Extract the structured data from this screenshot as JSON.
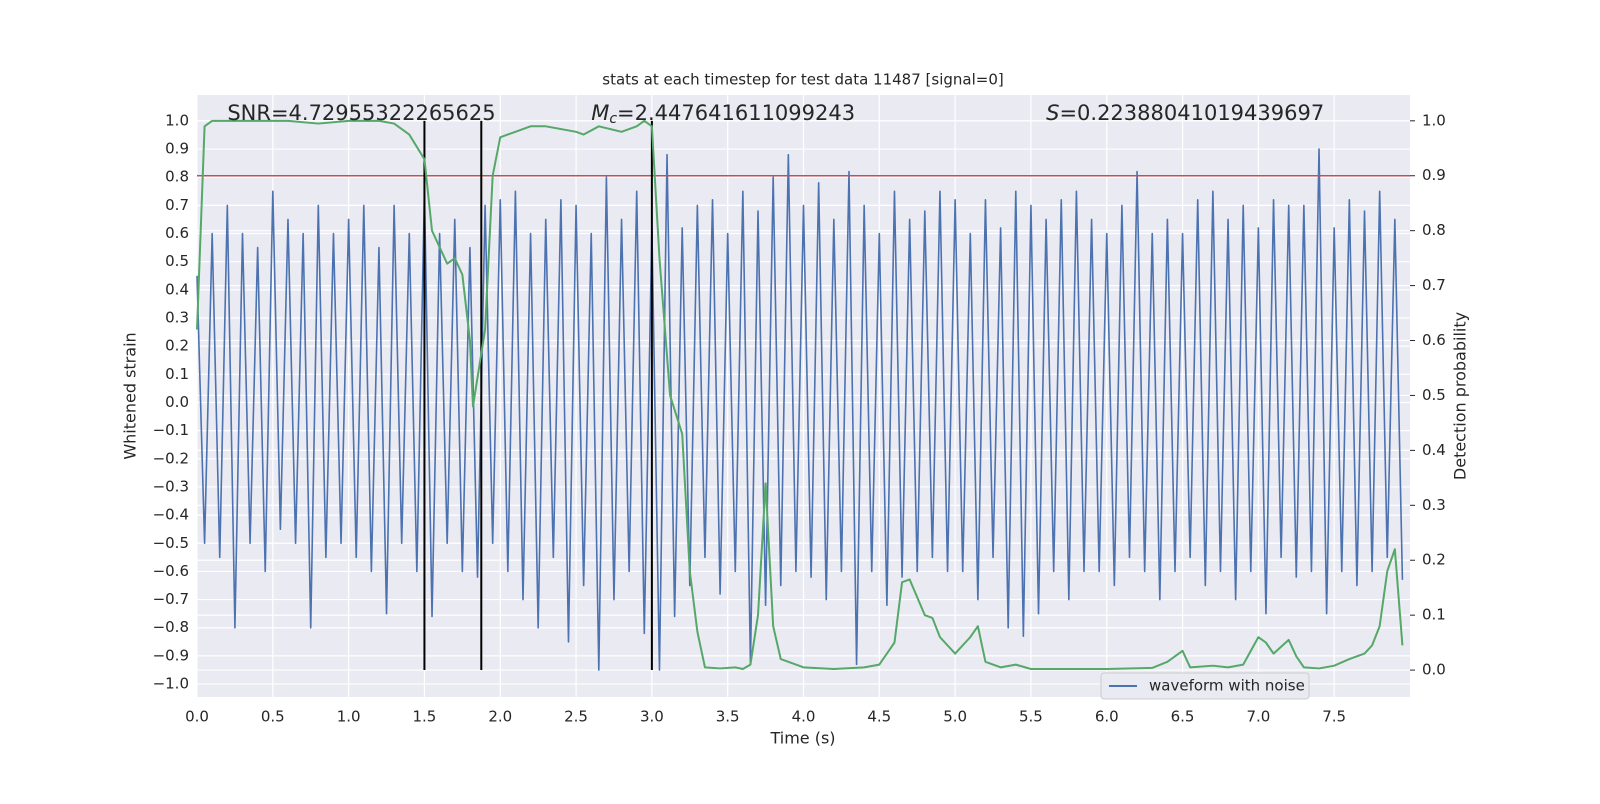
{
  "chart_data": {
    "type": "line",
    "title": "stats at each timestep for test data 11487 [signal=0]",
    "xlabel": "Time (s)",
    "ylabel": "Whitened strain",
    "y2label": "Detection probability",
    "xlim": [
      0,
      8.0
    ],
    "ylim": [
      -1.046,
      1.092
    ],
    "y2lim": [
      -0.049,
      1.047
    ],
    "xticks": [
      {
        "value": 0,
        "label": "0.0"
      },
      0.5,
      {
        "value": 1,
        "label": "1.0"
      },
      1.5,
      {
        "value": 2,
        "label": "2.0"
      },
      2.5,
      {
        "value": 3,
        "label": "3.0"
      },
      3.5,
      {
        "value": 4,
        "label": "4.0"
      },
      4.5,
      {
        "value": 5,
        "label": "5.0"
      },
      5.5,
      {
        "value": 6,
        "label": "6.0"
      },
      6.5,
      {
        "value": 7,
        "label": "7.0"
      },
      7.5
    ],
    "yticks": [
      {
        "value": -1,
        "label": "−1.0"
      },
      {
        "value": -0.9,
        "label": "−0.9"
      },
      {
        "value": -0.8,
        "label": "−0.8"
      },
      {
        "value": -0.7,
        "label": "−0.7"
      },
      {
        "value": -0.6,
        "label": "−0.6"
      },
      {
        "value": -0.5,
        "label": "−0.5"
      },
      {
        "value": -0.4,
        "label": "−0.4"
      },
      {
        "value": -0.3,
        "label": "−0.3"
      },
      {
        "value": -0.2,
        "label": "−0.2"
      },
      {
        "value": -0.1,
        "label": "−0.1"
      },
      {
        "value": 0,
        "label": "0.0"
      },
      0.1,
      0.2,
      0.3,
      0.4,
      0.5,
      0.6,
      0.7,
      0.8,
      0.9,
      {
        "value": 1,
        "label": "1.0"
      }
    ],
    "y2ticks": [
      {
        "value": 0,
        "label": "0.0"
      },
      0.1,
      0.2,
      0.3,
      0.4,
      0.5,
      0.6,
      0.7,
      0.8,
      0.9,
      {
        "value": 1,
        "label": "1.0"
      }
    ],
    "grid": true,
    "legend": "lower right",
    "hlines": [
      {
        "value": 0.9,
        "axis": "y2",
        "color": "#c44e52"
      }
    ],
    "vlines": {
      "x": [
        1.5,
        1.875,
        3.0
      ],
      "span": [
        -0.95,
        1.0
      ],
      "color": "#000000"
    },
    "annotations": [
      {
        "text": "SNR=4.72955322265625",
        "x": 0.2
      },
      {
        "symbol": "M",
        "subscript": "c",
        "text": "=2.447641611099243",
        "x": 2.6
      },
      {
        "symbol": "S",
        "text": "=0.22388041019439697",
        "x": 5.6
      }
    ],
    "series": [
      {
        "name": "waveform with noise",
        "color": "#4c72b0",
        "x": [
          0,
          0.05,
          0.1,
          0.15,
          0.2,
          0.25,
          0.3,
          0.35,
          0.4,
          0.45,
          0.5,
          0.55,
          0.6,
          0.65,
          0.7,
          0.75,
          0.8,
          0.85,
          0.9,
          0.95,
          1,
          1.05,
          1.1,
          1.15,
          1.2,
          1.25,
          1.3,
          1.35,
          1.4,
          1.45,
          1.5,
          1.55,
          1.6,
          1.65,
          1.7,
          1.75,
          1.8,
          1.85,
          1.9,
          1.95,
          2,
          2.05,
          2.1,
          2.15,
          2.2,
          2.25,
          2.3,
          2.35,
          2.4,
          2.45,
          2.5,
          2.55,
          2.6,
          2.65,
          2.7,
          2.75,
          2.8,
          2.85,
          2.9,
          2.95,
          3,
          3.05,
          3.1,
          3.15,
          3.2,
          3.25,
          3.3,
          3.35,
          3.4,
          3.45,
          3.5,
          3.55,
          3.6,
          3.65,
          3.7,
          3.75,
          3.8,
          3.85,
          3.9,
          3.95,
          4,
          4.05,
          4.1,
          4.15,
          4.2,
          4.25,
          4.3,
          4.35,
          4.4,
          4.45,
          4.5,
          4.55,
          4.6,
          4.65,
          4.7,
          4.75,
          4.8,
          4.85,
          4.9,
          4.95,
          5,
          5.05,
          5.1,
          5.15,
          5.2,
          5.25,
          5.3,
          5.35,
          5.4,
          5.45,
          5.5,
          5.55,
          5.6,
          5.65,
          5.7,
          5.75,
          5.8,
          5.85,
          5.9,
          5.95,
          6,
          6.05,
          6.1,
          6.15,
          6.2,
          6.25,
          6.3,
          6.35,
          6.4,
          6.45,
          6.5,
          6.55,
          6.6,
          6.65,
          6.7,
          6.75,
          6.8,
          6.85,
          6.9,
          6.95,
          7,
          7.05,
          7.1,
          7.15,
          7.2,
          7.25,
          7.3,
          7.35,
          7.4,
          7.45,
          7.5,
          7.55,
          7.6,
          7.65,
          7.7,
          7.75,
          7.8,
          7.85,
          7.9,
          7.95
        ],
        "values": [
          0.45,
          -0.5,
          0.6,
          -0.55,
          0.7,
          -0.8,
          0.6,
          -0.5,
          0.55,
          -0.6,
          0.75,
          -0.45,
          0.65,
          -0.5,
          0.6,
          -0.8,
          0.7,
          -0.55,
          0.6,
          -0.5,
          0.65,
          -0.55,
          0.7,
          -0.6,
          0.55,
          -0.75,
          0.7,
          -0.5,
          0.6,
          -0.6,
          0.75,
          -0.76,
          0.6,
          -0.5,
          0.65,
          -0.6,
          0.55,
          -0.62,
          0.7,
          -0.5,
          0.72,
          -0.6,
          0.75,
          -0.7,
          0.6,
          -0.8,
          0.65,
          -0.55,
          0.72,
          -0.85,
          0.7,
          -0.65,
          0.6,
          -0.95,
          0.8,
          -0.7,
          0.65,
          -0.6,
          0.75,
          -0.82,
          0.62,
          -0.95,
          0.88,
          -0.76,
          0.62,
          -0.65,
          0.7,
          -0.55,
          0.72,
          -0.68,
          0.6,
          -0.6,
          0.75,
          -0.93,
          0.68,
          -0.72,
          0.8,
          -0.65,
          0.88,
          -0.6,
          0.7,
          -0.62,
          0.78,
          -0.7,
          0.65,
          -0.6,
          0.82,
          -0.93,
          0.7,
          -0.6,
          0.6,
          -0.72,
          0.75,
          -0.62,
          0.65,
          -0.6,
          0.68,
          -0.55,
          0.75,
          -0.6,
          0.72,
          -0.6,
          0.6,
          -0.7,
          0.72,
          -0.55,
          0.62,
          -0.8,
          0.75,
          -0.83,
          0.7,
          -0.75,
          0.65,
          -0.6,
          0.72,
          -0.7,
          0.75,
          -0.6,
          0.65,
          -0.6,
          0.6,
          -0.65,
          0.7,
          -0.55,
          0.82,
          -0.6,
          0.6,
          -0.7,
          0.65,
          -0.6,
          0.6,
          -0.55,
          0.72,
          -0.65,
          0.75,
          -0.6,
          0.65,
          -0.7,
          0.7,
          -0.6,
          0.62,
          -0.75,
          0.72,
          -0.55,
          0.7,
          -0.62,
          0.7,
          -0.6,
          0.9,
          -0.75,
          0.62,
          -0.6,
          0.72,
          -0.65,
          0.68,
          -0.6,
          0.75,
          -0.55,
          0.65,
          -0.63
        ]
      },
      {
        "color": "#55a868",
        "axis": "y2",
        "x": [
          0,
          0.05,
          0.1,
          0.3,
          0.6,
          0.8,
          1.0,
          1.2,
          1.3,
          1.4,
          1.5,
          1.55,
          1.6,
          1.65,
          1.7,
          1.75,
          1.8,
          1.82,
          1.9,
          1.95,
          2.0,
          2.1,
          2.2,
          2.3,
          2.5,
          2.55,
          2.65,
          2.8,
          2.9,
          2.95,
          3.0,
          3.05,
          3.12,
          3.2,
          3.25,
          3.3,
          3.35,
          3.45,
          3.55,
          3.6,
          3.65,
          3.7,
          3.75,
          3.8,
          3.85,
          4.0,
          4.2,
          4.4,
          4.5,
          4.6,
          4.65,
          4.7,
          4.8,
          4.85,
          4.9,
          5.0,
          5.1,
          5.15,
          5.2,
          5.3,
          5.4,
          5.5,
          6.0,
          6.3,
          6.4,
          6.5,
          6.55,
          6.7,
          6.8,
          6.9,
          7.0,
          7.05,
          7.1,
          7.2,
          7.25,
          7.3,
          7.4,
          7.5,
          7.6,
          7.7,
          7.75,
          7.8,
          7.85,
          7.9,
          7.95
        ],
        "values": [
          0.62,
          0.99,
          1.0,
          1.0,
          1.0,
          0.995,
          1.0,
          1.0,
          0.995,
          0.975,
          0.93,
          0.8,
          0.77,
          0.74,
          0.75,
          0.72,
          0.6,
          0.48,
          0.62,
          0.9,
          0.97,
          0.98,
          0.99,
          0.99,
          0.98,
          0.975,
          0.99,
          0.98,
          0.99,
          1.0,
          0.99,
          0.75,
          0.5,
          0.43,
          0.18,
          0.07,
          0.005,
          0.003,
          0.005,
          0.002,
          0.01,
          0.1,
          0.34,
          0.08,
          0.02,
          0.005,
          0.002,
          0.005,
          0.01,
          0.05,
          0.16,
          0.165,
          0.1,
          0.095,
          0.06,
          0.03,
          0.06,
          0.08,
          0.015,
          0.005,
          0.01,
          0.002,
          0.002,
          0.004,
          0.015,
          0.035,
          0.005,
          0.008,
          0.005,
          0.01,
          0.06,
          0.05,
          0.03,
          0.055,
          0.025,
          0.005,
          0.003,
          0.008,
          0.02,
          0.03,
          0.045,
          0.08,
          0.18,
          0.22,
          0.045
        ]
      }
    ]
  }
}
